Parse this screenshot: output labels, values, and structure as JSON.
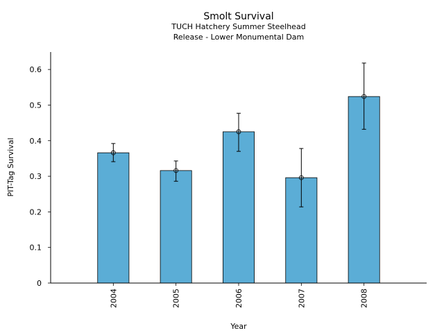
{
  "chart_data": {
    "type": "bar",
    "title": "Smolt Survival",
    "subtitle_lines": [
      "TUCH Hatchery Summer Steelhead",
      "Release - Lower Monumental Dam"
    ],
    "xlabel": "Year",
    "ylabel": "PIT-Tag Survival",
    "categories": [
      "2004",
      "2005",
      "2006",
      "2007",
      "2008"
    ],
    "values": [
      0.366,
      0.316,
      0.425,
      0.296,
      0.524
    ],
    "error_lower": [
      0.341,
      0.286,
      0.37,
      0.214,
      0.432
    ],
    "error_upper": [
      0.392,
      0.343,
      0.477,
      0.378,
      0.618
    ],
    "ylim": [
      0,
      0.649
    ],
    "xlim": [
      -1,
      5
    ],
    "yticks": [
      0,
      0.1,
      0.2,
      0.3,
      0.4,
      0.5,
      0.6
    ],
    "ytick_labels": [
      "0",
      "0.1",
      "0.2",
      "0.3",
      "0.4",
      "0.5",
      "0.6"
    ],
    "grid": false,
    "bar_color": "#5badd6",
    "edge_color": "#000000"
  }
}
